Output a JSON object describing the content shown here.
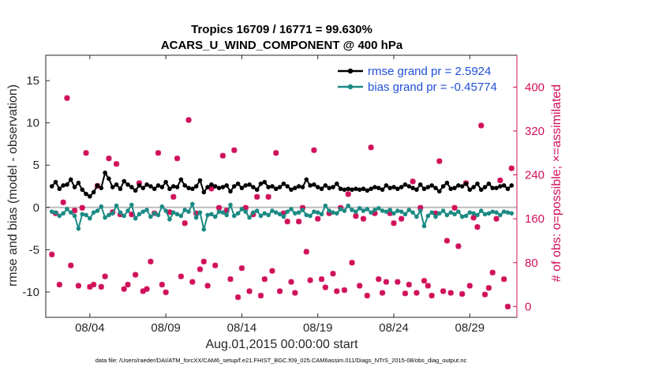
{
  "chart_data": {
    "type": "line",
    "title": "Tropics 16709 / 16771 = 99.630%",
    "subtitle": "ACARS_U_WIND_COMPONENT @ 400 hPa",
    "xlabel": "Aug.01,2015 00:00:00 start",
    "ylabel": "rmse and bias (model - observation)",
    "ylabel_right": "# of obs: o=possible; ×=assimilated",
    "footer": "data file: /Users/raeder/DAI/ATM_forcXX/CAM6_setup/f.e21.FHIST_BGC.f09_025.CAM6assim.011/Diags_NTrS_2015-08/obs_diag_output.nc",
    "xlim": [
      0.6,
      31.6
    ],
    "ylim": [
      -13,
      18
    ],
    "ylim_right": [
      -19.6,
      458
    ],
    "x_ticks": [
      3.5,
      8.5,
      13.5,
      18.5,
      23.5,
      28.5
    ],
    "x_tick_labels": [
      "08/04",
      "08/09",
      "08/14",
      "08/19",
      "08/24",
      "08/29"
    ],
    "y_ticks": [
      -10,
      -5,
      0,
      5,
      10,
      15
    ],
    "y_tick_labels": [
      "-10",
      "-5",
      "0",
      "5",
      "10",
      "15"
    ],
    "y_right_ticks": [
      0,
      80,
      160,
      240,
      320,
      400
    ],
    "y_right_tick_labels": [
      "0",
      "80",
      "160",
      "240",
      "320",
      "400"
    ],
    "legend": [
      "rmse grand pr = 2.5924",
      "bias grand pr = -0.45774"
    ],
    "legend_position": "top-right",
    "x": [
      1.0,
      1.25,
      1.5,
      1.75,
      2.0,
      2.25,
      2.5,
      2.75,
      3.0,
      3.25,
      3.5,
      3.75,
      4.0,
      4.25,
      4.5,
      4.75,
      5.0,
      5.25,
      5.5,
      5.75,
      6.0,
      6.25,
      6.5,
      6.75,
      7.0,
      7.25,
      7.5,
      7.75,
      8.0,
      8.25,
      8.5,
      8.75,
      9.0,
      9.25,
      9.5,
      9.75,
      10.0,
      10.25,
      10.5,
      10.75,
      11.0,
      11.25,
      11.5,
      11.75,
      12.0,
      12.25,
      12.5,
      12.75,
      13.0,
      13.25,
      13.5,
      13.75,
      14.0,
      14.25,
      14.5,
      14.75,
      15.0,
      15.25,
      15.5,
      15.75,
      16.0,
      16.25,
      16.5,
      16.75,
      17.0,
      17.25,
      17.5,
      17.75,
      18.0,
      18.25,
      18.5,
      18.75,
      19.0,
      19.25,
      19.5,
      19.75,
      20.0,
      20.25,
      20.5,
      20.75,
      21.0,
      21.25,
      21.5,
      21.75,
      22.0,
      22.25,
      22.5,
      22.75,
      23.0,
      23.25,
      23.5,
      23.75,
      24.0,
      24.25,
      24.5,
      24.75,
      25.0,
      25.25,
      25.5,
      25.75,
      26.0,
      26.25,
      26.5,
      26.75,
      27.0,
      27.25,
      27.5,
      27.75,
      28.0,
      28.25,
      28.5,
      28.75,
      29.0,
      29.25,
      29.5,
      29.75,
      30.0,
      30.25,
      30.5,
      30.75,
      31.0,
      31.25
    ],
    "series": [
      {
        "name": "rmse",
        "color": "#000000",
        "values": [
          2.5,
          3.0,
          2.2,
          2.6,
          2.7,
          3.3,
          2.4,
          2.9,
          2.1,
          1.6,
          1.3,
          1.8,
          2.6,
          2.3,
          4.1,
          3.4,
          2.4,
          2.7,
          2.2,
          3.1,
          2.7,
          2.4,
          2.0,
          2.6,
          2.3,
          2.7,
          2.5,
          2.2,
          2.6,
          2.4,
          3.0,
          2.2,
          2.5,
          2.4,
          3.3,
          2.6,
          2.3,
          2.2,
          2.5,
          3.2,
          1.8,
          2.4,
          2.7,
          2.5,
          2.3,
          2.4,
          2.6,
          1.9,
          2.5,
          2.8,
          2.3,
          2.6,
          2.7,
          2.4,
          2.1,
          2.8,
          3.0,
          2.4,
          2.5,
          2.2,
          2.4,
          2.8,
          2.5,
          2.1,
          2.3,
          2.5,
          2.4,
          3.3,
          2.6,
          2.7,
          2.4,
          2.2,
          2.6,
          2.3,
          2.4,
          2.8,
          2.2,
          2.1,
          2.2,
          2.1,
          2.2,
          2.1,
          2.2,
          2.0,
          2.2,
          2.4,
          2.3,
          2.1,
          2.6,
          2.3,
          2.4,
          2.2,
          2.4,
          2.7,
          2.5,
          2.3,
          2.1,
          2.7,
          2.2,
          2.4,
          2.6,
          2.3,
          1.9,
          2.5,
          2.9,
          2.2,
          2.3,
          2.6,
          2.5,
          2.8,
          2.1,
          2.4,
          2.8,
          2.1,
          2.4,
          2.8,
          2.3,
          2.3,
          2.5,
          2.6,
          2.2,
          2.6
        ]
      },
      {
        "name": "bias",
        "color": "#1a8a83",
        "values": [
          -0.5,
          -0.6,
          -1.0,
          -0.7,
          -0.2,
          -0.6,
          -1.0,
          -2.5,
          -0.8,
          -0.9,
          -1.3,
          -0.6,
          -0.4,
          0.1,
          -1.2,
          -0.9,
          -0.7,
          0.2,
          -0.6,
          -1.0,
          -0.4,
          0.3,
          -1.3,
          -0.8,
          -0.5,
          -0.3,
          -1.1,
          -0.7,
          -0.9,
          0.1,
          -0.4,
          -1.4,
          -0.6,
          -0.8,
          -1.0,
          -0.3,
          -0.5,
          0.4,
          -1.2,
          -0.6,
          -2.6,
          -0.9,
          -0.8,
          -1.1,
          -0.5,
          -0.6,
          -0.9,
          0.3,
          -1.0,
          -0.7,
          -0.2,
          -0.5,
          -1.2,
          -0.6,
          -0.4,
          -1.0,
          -0.7,
          -0.9,
          -0.4,
          -0.6,
          -0.8,
          -1.1,
          -0.5,
          -0.2,
          -0.7,
          -0.6,
          -0.3,
          -0.9,
          -1.0,
          -0.5,
          -0.6,
          -0.8,
          0.2,
          -0.4,
          -0.6,
          -0.7,
          -0.2,
          -0.4,
          0.2,
          -0.3,
          -0.5,
          -0.1,
          -0.4,
          -0.2,
          -0.6,
          -0.3,
          -0.1,
          -0.4,
          -0.5,
          -0.3,
          -0.7,
          -0.4,
          -0.5,
          -0.8,
          -0.3,
          -0.6,
          -1.1,
          -0.4,
          -2.2,
          -1.0,
          -0.6,
          -1.1,
          -0.7,
          -0.4,
          -0.9,
          -0.6,
          -0.8,
          -0.5,
          -1.1,
          -1.0,
          -0.6,
          -0.7,
          -0.9,
          -0.4,
          -0.8,
          -0.7,
          -0.5,
          -0.6,
          -0.9,
          -0.5,
          -0.6,
          -0.7
        ]
      }
    ],
    "obs_count": {
      "name": "# of obs",
      "color": "#d0105a",
      "x": [
        1.0,
        1.25,
        1.5,
        1.75,
        2.0,
        2.25,
        2.5,
        2.75,
        3.0,
        3.25,
        3.5,
        3.75,
        4.0,
        4.25,
        4.5,
        4.75,
        5.0,
        5.25,
        5.5,
        5.75,
        6.0,
        6.25,
        6.5,
        6.75,
        7.0,
        7.25,
        7.5,
        7.75,
        8.0,
        8.25,
        8.5,
        8.75,
        9.0,
        9.25,
        9.5,
        9.75,
        10.0,
        10.25,
        10.5,
        10.75,
        11.0,
        11.25,
        11.5,
        11.75,
        12.0,
        12.25,
        12.5,
        12.75,
        13.0,
        13.25,
        13.5,
        13.75,
        14.0,
        14.25,
        14.5,
        14.75,
        15.0,
        15.25,
        15.5,
        15.75,
        16.0,
        16.25,
        16.5,
        16.75,
        17.0,
        17.25,
        17.5,
        17.75,
        18.0,
        18.25,
        18.5,
        18.75,
        19.0,
        19.25,
        19.5,
        19.75,
        20.0,
        20.25,
        20.5,
        20.75,
        21.0,
        21.25,
        21.5,
        21.75,
        22.0,
        22.25,
        22.5,
        22.75,
        23.0,
        23.25,
        23.5,
        23.75,
        24.0,
        24.25,
        24.5,
        24.75,
        25.0,
        25.25,
        25.5,
        25.75,
        26.0,
        26.25,
        26.5,
        26.75,
        27.0,
        27.25,
        27.5,
        27.75,
        28.0,
        28.25,
        28.5,
        28.75,
        29.0,
        29.25,
        29.5,
        29.75,
        30.0,
        30.25,
        30.5,
        30.75,
        31.0,
        31.25
      ],
      "values": [
        95,
        170,
        40,
        190,
        380,
        75,
        175,
        38,
        180,
        280,
        36,
        40,
        220,
        36,
        55,
        270,
        172,
        260,
        168,
        32,
        40,
        168,
        58,
        225,
        28,
        32,
        82,
        170,
        280,
        40,
        26,
        172,
        200,
        270,
        55,
        152,
        340,
        45,
        170,
        68,
        82,
        38,
        215,
        75,
        180,
        275,
        175,
        50,
        285,
        17,
        70,
        180,
        28,
        168,
        200,
        20,
        50,
        200,
        65,
        280,
        28,
        170,
        155,
        45,
        25,
        155,
        180,
        100,
        48,
        285,
        160,
        50,
        35,
        170,
        60,
        28,
        180,
        30,
        205,
        80,
        165,
        38,
        160,
        20,
        290,
        170,
        50,
        25,
        45,
        170,
        152,
        45,
        160,
        24,
        40,
        228,
        25,
        180,
        47,
        38,
        20,
        170,
        265,
        28,
        120,
        25,
        180,
        110,
        23,
        225,
        38,
        162,
        145,
        330,
        22,
        34,
        62,
        160,
        230,
        50,
        0,
        252
      ]
    }
  }
}
